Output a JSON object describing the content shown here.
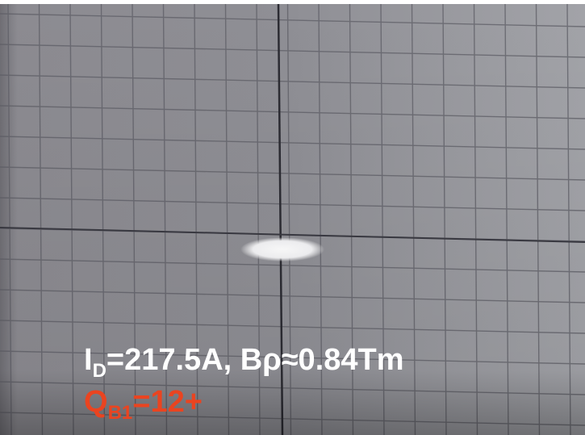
{
  "label_1": {
    "symbol": "I",
    "subscript": "D",
    "text": "=217.5A, Bρ≈0.84Tm"
  },
  "label_2": {
    "symbol": "Q",
    "subscript": "B1",
    "text": "=12+"
  }
}
